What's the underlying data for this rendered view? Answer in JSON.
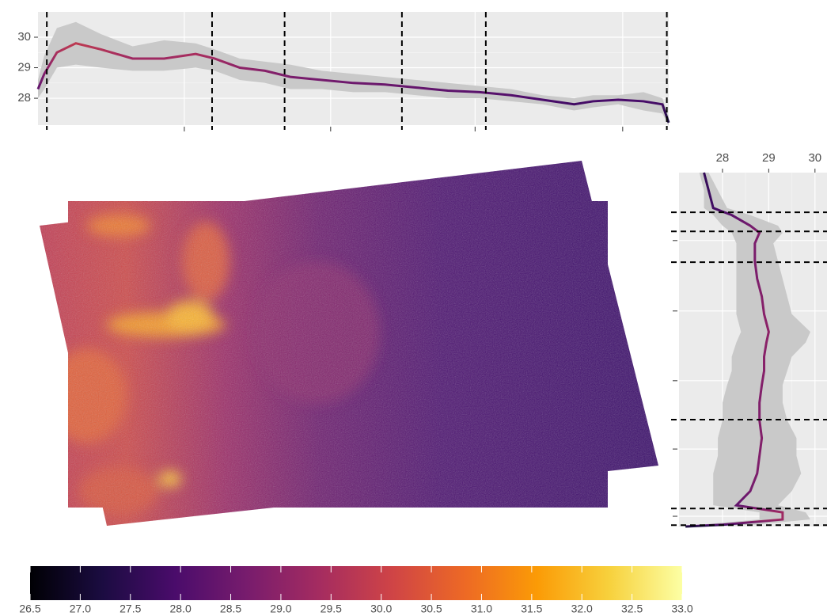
{
  "chart_data": [
    {
      "type": "line",
      "x": [
        0,
        1,
        3,
        6,
        10,
        15,
        20,
        25,
        28,
        32,
        36,
        40,
        45,
        50,
        55,
        60,
        65,
        70,
        75,
        80,
        85,
        88,
        92,
        96,
        99,
        100
      ],
      "values": [
        28.3,
        28.8,
        29.5,
        29.8,
        29.6,
        29.3,
        29.3,
        29.45,
        29.3,
        29.0,
        28.9,
        28.7,
        28.6,
        28.5,
        28.45,
        28.35,
        28.25,
        28.2,
        28.1,
        27.95,
        27.8,
        27.9,
        27.95,
        27.9,
        27.8,
        27.2
      ],
      "lower": [
        28.0,
        28.3,
        29.0,
        29.1,
        29.0,
        28.9,
        28.9,
        29.0,
        28.9,
        28.6,
        28.5,
        28.3,
        28.3,
        28.2,
        28.2,
        28.1,
        28.0,
        28.0,
        27.9,
        27.8,
        27.6,
        27.7,
        27.8,
        27.6,
        27.5,
        27.1
      ],
      "upper": [
        28.6,
        29.4,
        30.3,
        30.5,
        30.1,
        29.7,
        29.9,
        29.8,
        29.6,
        29.3,
        29.2,
        29.1,
        28.9,
        28.8,
        28.7,
        28.6,
        28.5,
        28.4,
        28.3,
        28.1,
        28.0,
        28.1,
        28.1,
        28.2,
        28.0,
        27.4
      ],
      "xlim": [
        0,
        100
      ],
      "ylim": [
        27.12,
        30.83
      ],
      "yticks": [
        28,
        29,
        30
      ],
      "xtick_marks": [
        23.2,
        46.4,
        69.3,
        92.7
      ],
      "vlines": [
        1.4,
        27.6,
        39.1,
        57.7,
        71.0,
        99.7
      ],
      "band_color": "#c9c9c9",
      "grid": true
    },
    {
      "type": "line",
      "orientation": "vertical",
      "y": [
        0,
        5,
        10,
        12,
        15,
        17,
        20,
        25,
        30,
        35,
        40,
        45,
        48,
        52,
        56,
        60,
        65,
        70,
        75,
        80,
        85,
        90,
        94,
        95,
        96,
        98,
        99.5,
        100
      ],
      "values": [
        27.6,
        27.7,
        27.8,
        28.2,
        28.6,
        28.8,
        28.7,
        28.7,
        28.75,
        28.85,
        28.9,
        29.0,
        28.95,
        28.9,
        28.9,
        28.85,
        28.8,
        28.8,
        28.85,
        28.8,
        28.75,
        28.6,
        28.3,
        28.8,
        29.3,
        29.3,
        28.0,
        27.2
      ],
      "lower": [
        27.5,
        27.6,
        27.6,
        27.8,
        28.0,
        28.2,
        28.3,
        28.3,
        28.3,
        28.3,
        28.3,
        28.4,
        28.3,
        28.2,
        28.2,
        28.1,
        28.0,
        28.0,
        27.9,
        27.9,
        27.8,
        27.8,
        27.8,
        28.3,
        28.8,
        28.8,
        27.5,
        27.0
      ],
      "upper": [
        27.7,
        27.9,
        28.1,
        28.6,
        29.2,
        29.3,
        29.1,
        29.2,
        29.3,
        29.4,
        29.5,
        29.9,
        29.8,
        29.5,
        29.4,
        29.3,
        29.3,
        29.4,
        29.6,
        29.6,
        29.7,
        29.5,
        29.2,
        29.5,
        29.8,
        29.9,
        28.7,
        27.4
      ],
      "xlim": [
        27.06,
        30.26
      ],
      "xticks": [
        28,
        29,
        30
      ],
      "ylim": [
        0,
        100
      ],
      "ytick_marks": [
        19.2,
        39.1,
        58.8,
        78.1,
        97.1
      ],
      "hlines": [
        11.2,
        16.6,
        25.3,
        69.8,
        94.9,
        99.6
      ],
      "band_color": "#c9c9c9",
      "grid": true
    },
    {
      "type": "colorbar",
      "range": [
        26.5,
        33.0
      ],
      "ticks": [
        26.5,
        {
          "value": 27,
          "label": "27.0"
        },
        27.5,
        {
          "value": 28,
          "label": "28.0"
        },
        28.5,
        {
          "value": 29,
          "label": "29.0"
        },
        29.5,
        {
          "value": 30,
          "label": "30.0"
        },
        30.5,
        {
          "value": 31,
          "label": "31.0"
        },
        31.5,
        {
          "value": 32,
          "label": "32.0"
        },
        32.5,
        {
          "value": 33,
          "label": "33.0"
        }
      ],
      "colors": [
        "#000004",
        "#1b0c41",
        "#4a0c6b",
        "#781c6d",
        "#a52c60",
        "#cf4446",
        "#ed6925",
        "#fb9b06",
        "#f7d13d",
        "#fcffa4"
      ]
    }
  ]
}
